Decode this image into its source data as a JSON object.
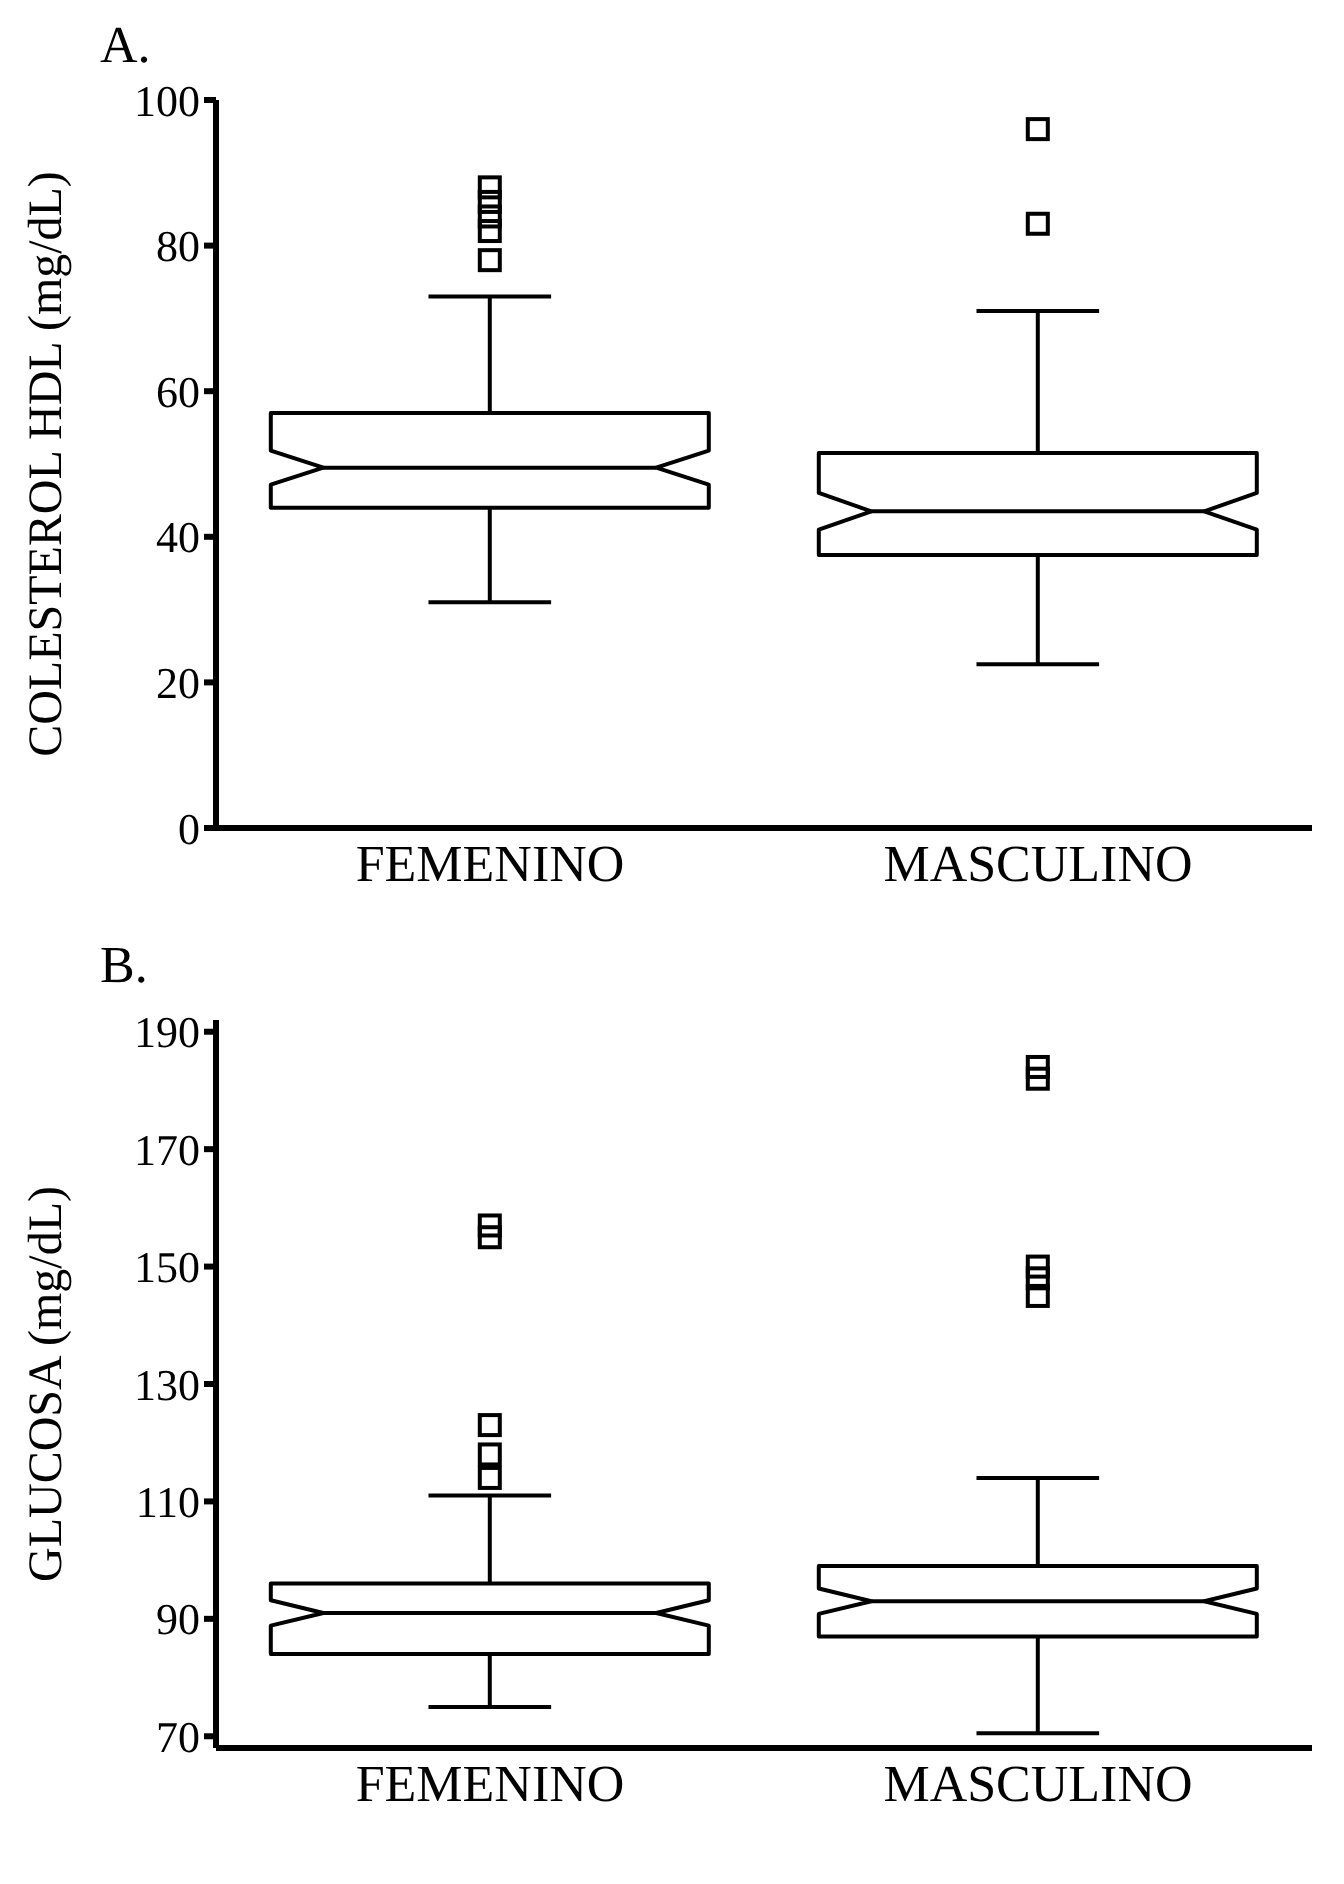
{
  "chart_data": [
    {
      "type": "box",
      "title": "A.",
      "ylabel": "COLESTEROL HDL (mg/dL)",
      "categories": [
        "FEMENINO",
        "MASCULINO"
      ],
      "ylim": [
        0,
        100
      ],
      "yticks": [
        0,
        20,
        40,
        60,
        80,
        100
      ],
      "boxes": [
        {
          "low": 31,
          "q1": 44,
          "median": 49.5,
          "q3": 57,
          "high": 73,
          "outliers": [
            78,
            82,
            84,
            86,
            88
          ]
        },
        {
          "low": 22.5,
          "q1": 37.5,
          "median": 43.5,
          "q3": 51.5,
          "high": 71,
          "outliers": [
            83,
            96
          ]
        }
      ]
    },
    {
      "type": "box",
      "title": "B.",
      "ylabel": "GLUCOSA  (mg/dL)",
      "categories": [
        "FEMENINO",
        "MASCULINO"
      ],
      "ylim": [
        68,
        192
      ],
      "yticks": [
        70,
        90,
        110,
        130,
        150,
        170,
        190
      ],
      "boxes": [
        {
          "low": 75,
          "q1": 84,
          "median": 91,
          "q3": 96,
          "high": 111,
          "outliers": [
            114,
            118,
            123,
            155,
            157
          ]
        },
        {
          "low": 70.5,
          "q1": 87,
          "median": 93,
          "q3": 99,
          "high": 114,
          "outliers": [
            145,
            148,
            150,
            182,
            184
          ]
        }
      ]
    }
  ]
}
